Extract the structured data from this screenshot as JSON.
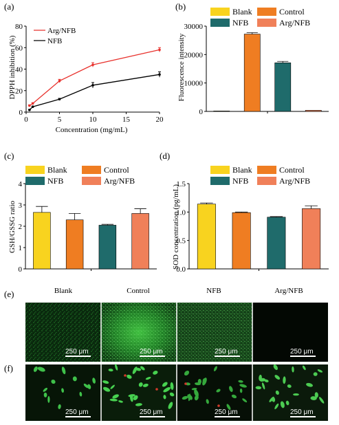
{
  "chart_data": [
    {
      "panel": "(a)",
      "type": "line",
      "xlabel": "Concentration (mg/mL)",
      "ylabel": "DPPH inhibition (%)",
      "xlim": [
        0,
        20
      ],
      "ylim": [
        0,
        80
      ],
      "xticks": [
        "0",
        "5",
        "10",
        "15",
        "20"
      ],
      "yticks": [
        "0",
        "20",
        "40",
        "60",
        "80"
      ],
      "legend_position": "top-left",
      "series": [
        {
          "name": "Arg/NFB",
          "color": "#e8312c",
          "x": [
            0.5,
            1,
            5,
            10,
            20
          ],
          "values": [
            6,
            8,
            29,
            44,
            58
          ],
          "errors": [
            0.8,
            0.8,
            1.5,
            2,
            2
          ]
        },
        {
          "name": "NFB",
          "color": "#000000",
          "x": [
            0.5,
            1,
            5,
            10,
            20
          ],
          "values": [
            2,
            5,
            12,
            25,
            35
          ],
          "errors": [
            0.5,
            0.5,
            0.8,
            2.5,
            2.5
          ]
        }
      ]
    },
    {
      "panel": "(b)",
      "type": "bar",
      "ylabel": "Fluorescence intensity",
      "ylim": [
        0,
        30000
      ],
      "yticks": [
        "0",
        "10000",
        "20000",
        "30000"
      ],
      "legend_position": "top",
      "categories": [
        "Blank",
        "Control",
        "NFB",
        "Arg/NFB"
      ],
      "values": [
        150,
        27200,
        17100,
        400
      ],
      "errors": [
        0,
        500,
        500,
        0
      ]
    },
    {
      "panel": "(c)",
      "type": "bar",
      "ylabel": "GSH/GSSG ratio",
      "ylim": [
        0,
        4
      ],
      "yticks": [
        "0",
        "1",
        "2",
        "3",
        "4"
      ],
      "legend_position": "top",
      "categories": [
        "Blank",
        "Control",
        "NFB",
        "Arg/NFB"
      ],
      "values": [
        2.65,
        2.3,
        2.05,
        2.6
      ],
      "errors": [
        0.28,
        0.3,
        0.04,
        0.22
      ]
    },
    {
      "panel": "(d)",
      "type": "bar",
      "ylabel": "SOD concentration (pg/mL)",
      "ylim": [
        0,
        1.5
      ],
      "yticks": [
        "0.0",
        "0.5",
        "1.0",
        "1.5"
      ],
      "legend_position": "top",
      "categories": [
        "Blank",
        "Control",
        "NFB",
        "Arg/NFB"
      ],
      "values": [
        1.14,
        0.99,
        0.91,
        1.06
      ],
      "errors": [
        0.02,
        0.01,
        0.01,
        0.05
      ]
    }
  ],
  "bar_colors": [
    "#f8d31f",
    "#ef7d22",
    "#1f6b6b",
    "#f08059"
  ],
  "panel_e": {
    "label": "(e)",
    "columns": [
      "Blank",
      "Control",
      "NFB",
      "Arg/NFB"
    ],
    "scale_bar": "250 μm"
  },
  "panel_f": {
    "label": "(f)",
    "scale_bar": "250 μm"
  }
}
